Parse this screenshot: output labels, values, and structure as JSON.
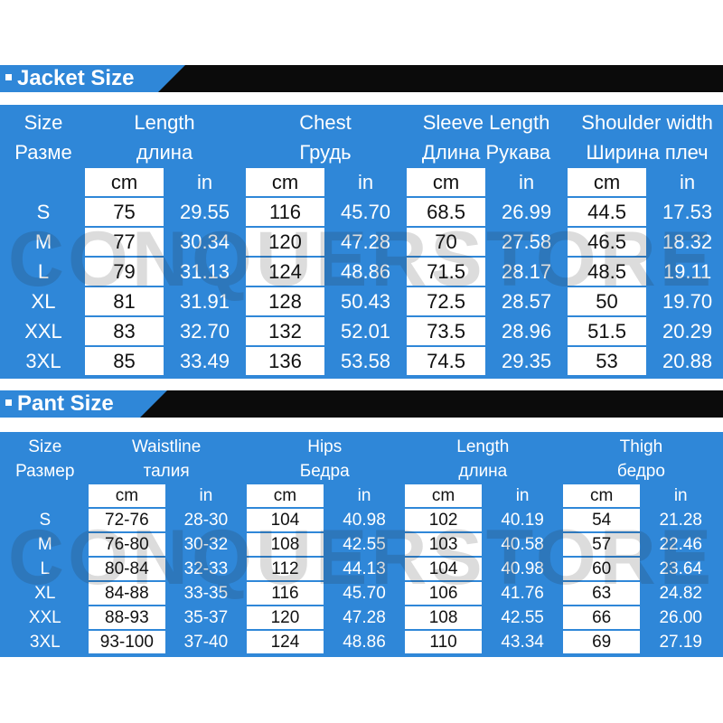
{
  "jacket": {
    "title": "Jacket Size",
    "size_label": [
      "Size",
      "Разме"
    ],
    "groups": [
      {
        "en": "Length",
        "ru": "длина"
      },
      {
        "en": "Chest",
        "ru": "Грудь"
      },
      {
        "en": "Sleeve Length",
        "ru": "Длина Рукава"
      },
      {
        "en": "Shoulder width",
        "ru": "Ширина плеч"
      }
    ],
    "units": [
      "cm",
      "in"
    ],
    "rows": [
      [
        "S",
        "75",
        "29.55",
        "116",
        "45.70",
        "68.5",
        "26.99",
        "44.5",
        "17.53"
      ],
      [
        "M",
        "77",
        "30.34",
        "120",
        "47.28",
        "70",
        "27.58",
        "46.5",
        "18.32"
      ],
      [
        "L",
        "79",
        "31.13",
        "124",
        "48.86",
        "71.5",
        "28.17",
        "48.5",
        "19.11"
      ],
      [
        "XL",
        "81",
        "31.91",
        "128",
        "50.43",
        "72.5",
        "28.57",
        "50",
        "19.70"
      ],
      [
        "XXL",
        "83",
        "32.70",
        "132",
        "52.01",
        "73.5",
        "28.96",
        "51.5",
        "20.29"
      ],
      [
        "3XL",
        "85",
        "33.49",
        "136",
        "53.58",
        "74.5",
        "29.35",
        "53",
        "20.88"
      ]
    ]
  },
  "pant": {
    "title": "Pant Size",
    "size_label": [
      "Size",
      "Размер"
    ],
    "groups": [
      {
        "en": "Waistline",
        "ru": "талия"
      },
      {
        "en": "Hips",
        "ru": "Бедра"
      },
      {
        "en": "Length",
        "ru": "длина"
      },
      {
        "en": "Thigh",
        "ru": "бедро"
      }
    ],
    "units": [
      "cm",
      "in"
    ],
    "rows": [
      [
        "S",
        "72-76",
        "28-30",
        "104",
        "40.98",
        "102",
        "40.19",
        "54",
        "21.28"
      ],
      [
        "M",
        "76-80",
        "30-32",
        "108",
        "42.55",
        "103",
        "40.58",
        "57",
        "22.46"
      ],
      [
        "L",
        "80-84",
        "32-33",
        "112",
        "44.13",
        "104",
        "40.98",
        "60",
        "23.64"
      ],
      [
        "XL",
        "84-88",
        "33-35",
        "116",
        "45.70",
        "106",
        "41.76",
        "63",
        "24.82"
      ],
      [
        "XXL",
        "88-93",
        "35-37",
        "120",
        "47.28",
        "108",
        "42.55",
        "66",
        "26.00"
      ],
      [
        "3XL",
        "93-100",
        "37-40",
        "124",
        "48.86",
        "110",
        "43.34",
        "69",
        "27.19"
      ]
    ]
  },
  "watermark": "CONQUERSTORE",
  "colors": {
    "header_blue": "#2f87d8",
    "banner_black": "#0b0b0b",
    "cell_white": "#ffffff"
  }
}
